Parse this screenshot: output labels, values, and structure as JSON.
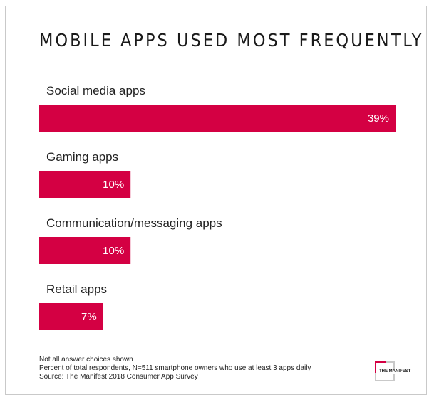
{
  "colors": {
    "bar": "#d40043",
    "text": "#222222",
    "border": "#c9c9c9"
  },
  "chart_data": {
    "type": "bar",
    "orientation": "horizontal",
    "title": "MOBILE APPS USED MOST FREQUENTLY",
    "categories": [
      "Social media apps",
      "Gaming apps",
      "Communication/messaging apps",
      "Retail apps"
    ],
    "values": [
      39,
      10,
      10,
      7
    ],
    "value_labels": [
      "39%",
      "10%",
      "10%",
      "7%"
    ],
    "unit": "%",
    "grid": false,
    "legend": "none"
  },
  "notes": [
    "Not all answer choices shown",
    "Percent of total respondents, N=511 smartphone owners who use at least 3 apps daily",
    "Source: The Manifest 2018 Consumer App Survey"
  ],
  "logo": {
    "text": "THE MANIFEST",
    "icon": "manifest-logo-icon"
  }
}
